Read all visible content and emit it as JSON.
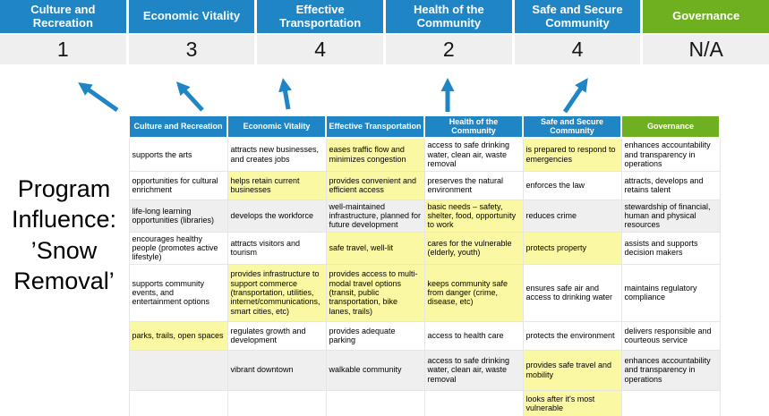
{
  "program_label": {
    "lines": [
      "Program",
      "Influence:",
      "’Snow",
      "Removal’"
    ]
  },
  "banner": {
    "columns": [
      {
        "label": "Culture and Recreation",
        "score": "1",
        "color": "blue"
      },
      {
        "label": "Economic Vitality",
        "score": "3",
        "color": "blue"
      },
      {
        "label": "Effective Transportation",
        "score": "4",
        "color": "blue"
      },
      {
        "label": "Health of the Community",
        "score": "2",
        "color": "blue"
      },
      {
        "label": "Safe and Secure Community",
        "score": "4",
        "color": "blue"
      },
      {
        "label": "Governance",
        "score": "N/A",
        "color": "green"
      }
    ]
  },
  "table": {
    "columns": [
      {
        "label": "Culture and Recreation",
        "color": "blue"
      },
      {
        "label": "Economic Vitality",
        "color": "blue"
      },
      {
        "label": "Effective Transportation",
        "color": "blue"
      },
      {
        "label": "Health of the Community",
        "color": "blue"
      },
      {
        "label": "Safe and Secure Community",
        "color": "blue"
      },
      {
        "label": "Governance",
        "color": "green"
      }
    ],
    "rows": [
      {
        "band": false,
        "cells": [
          {
            "text": "supports the arts",
            "hl": false
          },
          {
            "text": "attracts new businesses, and creates jobs",
            "hl": false
          },
          {
            "text": "eases traffic flow and minimizes congestion",
            "hl": true
          },
          {
            "text": "access to safe drinking water, clean air, waste removal",
            "hl": false
          },
          {
            "text": "is prepared to respond to emergencies",
            "hl": true
          },
          {
            "text": "enhances accountability and transparency in operations",
            "hl": false
          }
        ]
      },
      {
        "band": false,
        "cells": [
          {
            "text": "opportunities for cultural enrichment",
            "hl": false
          },
          {
            "text": "helps retain current businesses",
            "hl": true
          },
          {
            "text": "provides convenient and efficient access",
            "hl": true
          },
          {
            "text": "preserves the natural environment",
            "hl": false
          },
          {
            "text": "enforces the law",
            "hl": false
          },
          {
            "text": "attracts, develops and retains talent",
            "hl": false
          }
        ]
      },
      {
        "band": true,
        "cells": [
          {
            "text": "life-long learning opportunities (libraries)",
            "hl": false
          },
          {
            "text": "develops the workforce",
            "hl": false
          },
          {
            "text": "well-maintained infrastructure, planned for future development",
            "hl": false
          },
          {
            "text": "basic needs – safety, shelter, food, opportunity to work",
            "hl": true
          },
          {
            "text": "reduces crime",
            "hl": false
          },
          {
            "text": "stewardship of financial, human and physical resources",
            "hl": false
          }
        ]
      },
      {
        "band": false,
        "cells": [
          {
            "text": "encourages healthy people (promotes active lifestyle)",
            "hl": false
          },
          {
            "text": "attracts visitors and tourism",
            "hl": false
          },
          {
            "text": "safe travel, well-lit",
            "hl": true
          },
          {
            "text": "cares for the vulnerable (elderly, youth)",
            "hl": true
          },
          {
            "text": "protects property",
            "hl": true
          },
          {
            "text": "assists and supports decision makers",
            "hl": false
          }
        ]
      },
      {
        "band": false,
        "cells": [
          {
            "text": "supports community events, and entertainment options",
            "hl": false
          },
          {
            "text": "provides infrastructure to support commerce (transportation, utilities, internet/communications, smart cities, etc)",
            "hl": true
          },
          {
            "text": "provides access to multi-modal travel options (transit, public transportation, bike lanes, trails)",
            "hl": true
          },
          {
            "text": "keeps community safe from danger (crime, disease, etc)",
            "hl": true
          },
          {
            "text": "ensures safe air and access to drinking water",
            "hl": false
          },
          {
            "text": "maintains regulatory compliance",
            "hl": false
          }
        ]
      },
      {
        "band": false,
        "cells": [
          {
            "text": "parks, trails, open spaces",
            "hl": true
          },
          {
            "text": "regulates growth and development",
            "hl": false
          },
          {
            "text": "provides adequate parking",
            "hl": false
          },
          {
            "text": "access to health care",
            "hl": false
          },
          {
            "text": "protects the environment",
            "hl": false
          },
          {
            "text": "delivers responsible and courteous service",
            "hl": false
          }
        ]
      },
      {
        "band": true,
        "cells": [
          {
            "text": "",
            "hl": false
          },
          {
            "text": "vibrant downtown",
            "hl": false
          },
          {
            "text": "walkable community",
            "hl": false
          },
          {
            "text": "access to safe drinking water, clean air, waste removal",
            "hl": false
          },
          {
            "text": "provides safe travel and mobility",
            "hl": true
          },
          {
            "text": "enhances accountability and transparency in operations",
            "hl": false
          }
        ]
      },
      {
        "band": false,
        "cells": [
          {
            "text": "",
            "hl": false
          },
          {
            "text": "",
            "hl": false
          },
          {
            "text": "",
            "hl": false
          },
          {
            "text": "",
            "hl": false
          },
          {
            "text": "looks after it's most vulnerable",
            "hl": true
          },
          {
            "text": "",
            "hl": false
          }
        ]
      }
    ]
  },
  "colors": {
    "blue": "#1F85C5",
    "green": "#6FB021",
    "highlight": "#FBF8A3",
    "band": "#EFEFEF"
  }
}
